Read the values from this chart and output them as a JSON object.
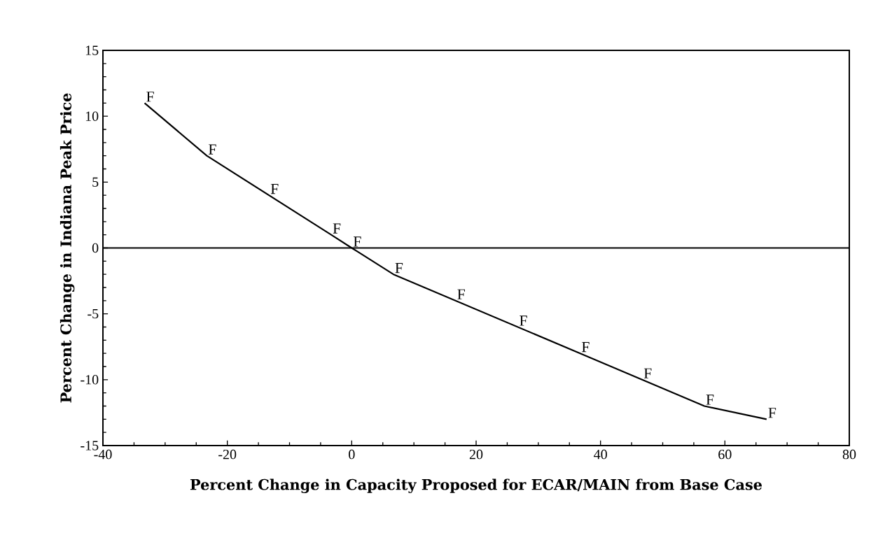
{
  "chart_data": {
    "type": "line",
    "xlabel": "Percent Change in Capacity Proposed for ECAR/MAIN from Base Case",
    "ylabel": "Percent Change in Indiana Peak Price",
    "x": [
      -33.3,
      -23.3,
      -13.3,
      -3.3,
      0,
      6.7,
      16.7,
      26.7,
      36.7,
      46.7,
      56.7,
      66.7
    ],
    "series": [
      {
        "color": "#000000",
        "values": [
          11,
          7,
          4,
          1,
          0,
          -2,
          -4,
          -6,
          -8,
          -10,
          -12,
          -13
        ]
      }
    ],
    "xlim": [
      -40,
      80
    ],
    "xticks": [
      -40,
      -20,
      0,
      20,
      40,
      60,
      80
    ],
    "ylim": [
      -15,
      15
    ],
    "yticks": [
      -15,
      -10,
      -5,
      0,
      5,
      10,
      15
    ],
    "grid": false,
    "marker": "none",
    "line_style": "solid",
    "ref_lines": [
      {
        "axis": "y",
        "value": 0,
        "color": "#000000"
      }
    ],
    "annotations": [
      {
        "text": "F",
        "x": -33.3,
        "y": 11
      },
      {
        "text": "F",
        "x": -23.3,
        "y": 7
      },
      {
        "text": "F",
        "x": -13.3,
        "y": 4
      },
      {
        "text": "F",
        "x": -3.3,
        "y": 1
      },
      {
        "text": "F",
        "x": 0,
        "y": 0
      },
      {
        "text": "F",
        "x": 6.7,
        "y": -2
      },
      {
        "text": "F",
        "x": 16.7,
        "y": -4
      },
      {
        "text": "F",
        "x": 26.7,
        "y": -6
      },
      {
        "text": "F",
        "x": 36.7,
        "y": -8
      },
      {
        "text": "F",
        "x": 46.7,
        "y": -10
      },
      {
        "text": "F",
        "x": 56.7,
        "y": -12
      },
      {
        "text": "F",
        "x": 66.7,
        "y": -13
      }
    ]
  }
}
